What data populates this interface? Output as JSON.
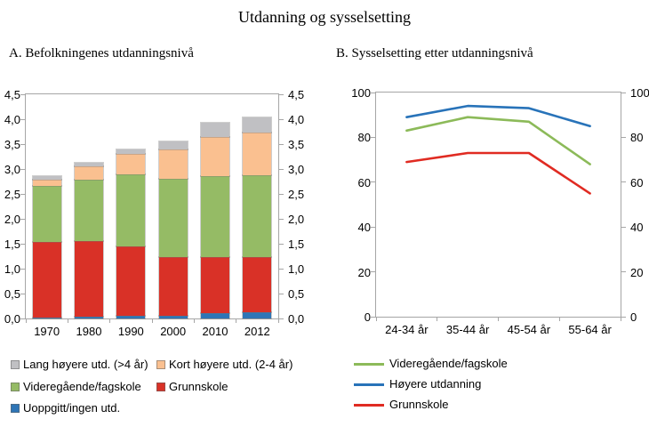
{
  "title": "Utdanning og sysselsetting",
  "axis_color": "#A6A6A6",
  "chart_data": [
    {
      "type": "bar",
      "stacked": true,
      "title": "A. Befolkningenes utdanningsnivå",
      "categories": [
        "1970",
        "1980",
        "1990",
        "2000",
        "2010",
        "2012"
      ],
      "series": [
        {
          "name": "Uoppgitt/ingen utd.",
          "color": "#2E75B6",
          "values": [
            0.02,
            0.04,
            0.05,
            0.05,
            0.1,
            0.13
          ]
        },
        {
          "name": "Grunnskole",
          "color": "#D93127",
          "values": [
            1.51,
            1.51,
            1.39,
            1.18,
            1.13,
            1.11
          ]
        },
        {
          "name": "Videregående/fagskole",
          "color": "#95BB65",
          "values": [
            1.13,
            1.23,
            1.45,
            1.57,
            1.62,
            1.64
          ]
        },
        {
          "name": "Kort høyere utd. (2-4 år)",
          "color": "#FAC090",
          "values": [
            0.13,
            0.27,
            0.41,
            0.59,
            0.8,
            0.86
          ]
        },
        {
          "name": "Lang høyere utd. (>4 år)",
          "color": "#C0C0C3",
          "values": [
            0.06,
            0.07,
            0.1,
            0.16,
            0.28,
            0.3
          ]
        }
      ],
      "ylim": [
        0,
        4.5
      ],
      "yticks": {
        "values": [
          0,
          0.5,
          1.0,
          1.5,
          2.0,
          2.5,
          3.0,
          3.5,
          4.0,
          4.5
        ],
        "labels": [
          "0,0",
          "0,5",
          "1,0",
          "1,5",
          "2,0",
          "2,5",
          "3,0",
          "3,5",
          "4,0",
          "4,5"
        ]
      },
      "grid": false,
      "legend_position": "below",
      "y_axis_sides": "both"
    },
    {
      "type": "line",
      "title": "B. Sysselsetting etter utdanningsnivå",
      "categories": [
        "24-34 år",
        "35-44 år",
        "45-54 år",
        "55-64 år"
      ],
      "series": [
        {
          "name": "Videregående/fagskole",
          "color": "#8CBA59",
          "values": [
            83,
            89,
            87,
            68
          ]
        },
        {
          "name": "Høyere utdanning",
          "color": "#2873B9",
          "values": [
            89,
            94,
            93,
            85
          ]
        },
        {
          "name": "Grunnskole",
          "color": "#E02B22",
          "values": [
            69,
            73,
            73,
            55
          ]
        }
      ],
      "ylim": [
        0,
        100
      ],
      "yticks": {
        "values": [
          0,
          20,
          40,
          60,
          80,
          100
        ],
        "labels": [
          "0",
          "20",
          "40",
          "60",
          "80",
          "100"
        ]
      },
      "grid": false,
      "legend_position": "below",
      "y_axis_sides": "both"
    }
  ],
  "legend_a": [
    {
      "label": "Lang høyere utd. (>4 år)",
      "color": "#C0C0C3"
    },
    {
      "label": "Kort høyere utd. (2-4 år)",
      "color": "#FAC090"
    },
    {
      "label": "Videregående/fagskole",
      "color": "#95BB65"
    },
    {
      "label": "Grunnskole",
      "color": "#D93127"
    },
    {
      "label": "Uoppgitt/ingen utd.",
      "color": "#2E75B6"
    }
  ],
  "legend_b": [
    {
      "label": "Videregående/fagskole",
      "color": "#8CBA59"
    },
    {
      "label": "Høyere utdanning",
      "color": "#2873B9"
    },
    {
      "label": "Grunnskole",
      "color": "#E02B22"
    }
  ]
}
